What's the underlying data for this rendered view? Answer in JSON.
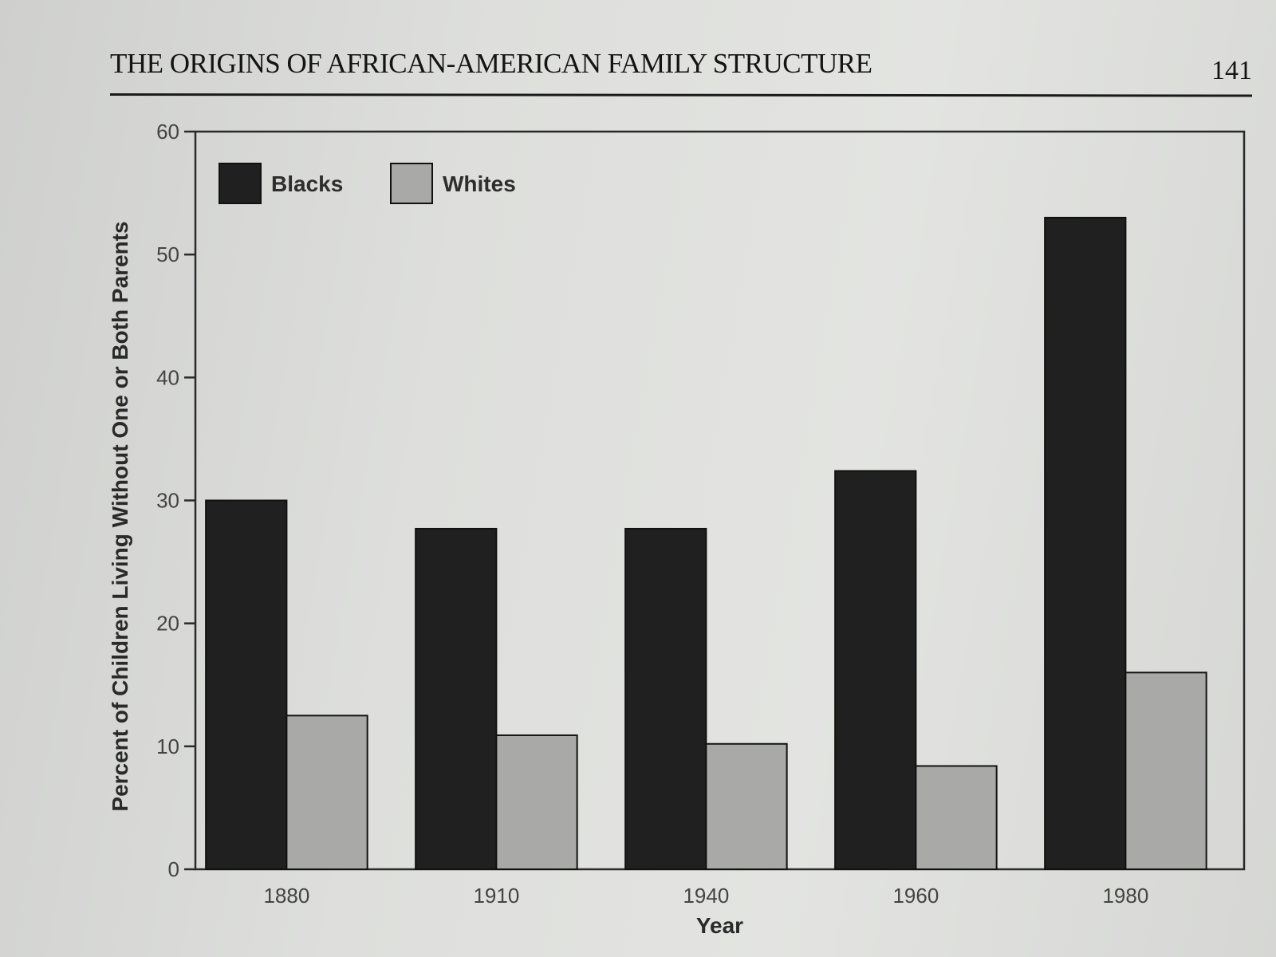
{
  "header": {
    "running_title": "THE ORIGINS OF AFRICAN-AMERICAN FAMILY STRUCTURE",
    "page_number": "141"
  },
  "colors": {
    "blacks_bar": "#202020",
    "whites_bar": "#a9a9a7",
    "axis": "#2a2a2a",
    "page_background": "#dcddda"
  },
  "chart_data": {
    "type": "bar",
    "title": "",
    "xlabel": "Year",
    "ylabel": "Percent of Children Living Without One or Both Parents",
    "categories": [
      "1880",
      "1910",
      "1940",
      "1960",
      "1980"
    ],
    "series": [
      {
        "name": "Blacks",
        "values": [
          30,
          27.7,
          27.7,
          32.4,
          53
        ]
      },
      {
        "name": "Whites",
        "values": [
          12.5,
          10.9,
          10.2,
          8.4,
          16
        ]
      }
    ],
    "ylim": [
      0,
      60
    ],
    "yticks": [
      0,
      10,
      20,
      30,
      40,
      50,
      60
    ],
    "grid": false,
    "legend": {
      "position": "top-left",
      "entries": [
        "Blacks",
        "Whites"
      ]
    }
  }
}
